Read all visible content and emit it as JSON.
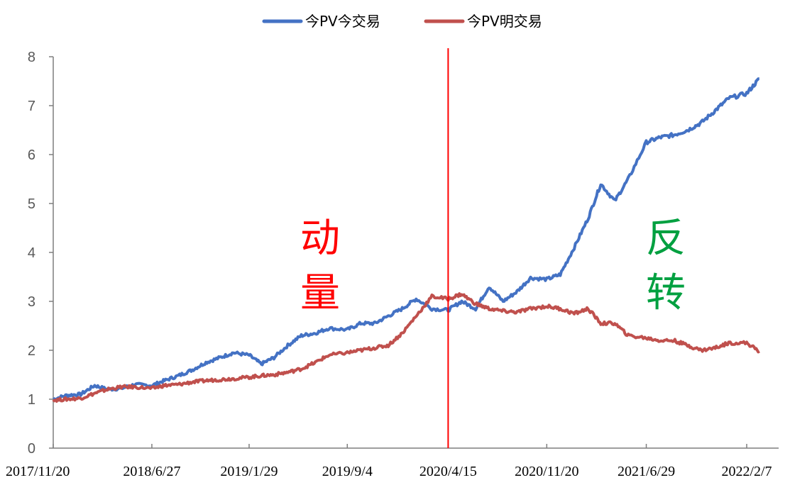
{
  "chart_data": {
    "type": "line",
    "legend_position": "top-center",
    "grid": false,
    "x_ticks": [
      "2017/11/20",
      "2018/6/27",
      "2019/1/29",
      "2019/9/4",
      "2020/4/15",
      "2020/11/20",
      "2021/6/29",
      "2022/2/7"
    ],
    "y_ticks": [
      "0",
      "1",
      "2",
      "3",
      "4",
      "5",
      "6",
      "7",
      "8"
    ],
    "ylim": [
      0,
      8
    ],
    "series": [
      {
        "name": "今PV今交易",
        "color": "#4472C4",
        "x": [
          "2017/11/20",
          "2017/12/20",
          "2018/1/20",
          "2018/2/20",
          "2018/3/20",
          "2018/4/20",
          "2018/5/20",
          "2018/6/27",
          "2018/7/25",
          "2018/8/25",
          "2018/9/25",
          "2018/10/25",
          "2018/11/25",
          "2018/12/25",
          "2019/1/29",
          "2019/2/25",
          "2019/3/25",
          "2019/4/25",
          "2019/5/25",
          "2019/6/25",
          "2019/7/25",
          "2019/9/4",
          "2019/10/4",
          "2019/11/4",
          "2019/12/4",
          "2020/1/4",
          "2020/2/4",
          "2020/3/10",
          "2020/4/15",
          "2020/5/15",
          "2020/6/15",
          "2020/7/15",
          "2020/8/15",
          "2020/9/15",
          "2020/10/15",
          "2020/11/20",
          "2020/12/20",
          "2021/1/20",
          "2021/2/20",
          "2021/3/20",
          "2021/4/20",
          "2021/5/20",
          "2021/6/29",
          "2021/7/29",
          "2021/8/29",
          "2021/9/29",
          "2021/10/29",
          "2021/11/29",
          "2021/12/29",
          "2022/2/7",
          "2022/3/7"
        ],
        "values": [
          1.0,
          1.08,
          1.1,
          1.28,
          1.2,
          1.22,
          1.3,
          1.28,
          1.38,
          1.48,
          1.6,
          1.75,
          1.85,
          1.95,
          1.9,
          1.72,
          1.85,
          2.1,
          2.3,
          2.35,
          2.45,
          2.42,
          2.55,
          2.55,
          2.7,
          2.85,
          3.05,
          2.85,
          2.82,
          3.0,
          2.85,
          3.3,
          3.0,
          3.2,
          3.48,
          3.45,
          3.55,
          4.1,
          4.7,
          5.4,
          5.05,
          5.5,
          6.25,
          6.35,
          6.4,
          6.5,
          6.65,
          6.9,
          7.15,
          7.25,
          7.55
        ]
      },
      {
        "name": "今PV明交易",
        "color": "#C0504D",
        "x": [
          "2017/11/20",
          "2017/12/20",
          "2018/1/20",
          "2018/2/20",
          "2018/3/20",
          "2018/4/20",
          "2018/5/20",
          "2018/6/27",
          "2018/7/25",
          "2018/8/25",
          "2018/9/25",
          "2018/10/25",
          "2018/11/25",
          "2018/12/25",
          "2019/1/29",
          "2019/2/25",
          "2019/3/25",
          "2019/4/25",
          "2019/5/25",
          "2019/6/25",
          "2019/7/25",
          "2019/9/4",
          "2019/10/4",
          "2019/11/4",
          "2019/12/4",
          "2020/1/4",
          "2020/2/4",
          "2020/3/10",
          "2020/4/15",
          "2020/5/15",
          "2020/6/15",
          "2020/7/15",
          "2020/8/15",
          "2020/9/15",
          "2020/10/15",
          "2020/11/20",
          "2020/12/20",
          "2021/1/20",
          "2021/2/20",
          "2021/3/20",
          "2021/4/20",
          "2021/5/20",
          "2021/6/29",
          "2021/7/29",
          "2021/8/29",
          "2021/9/29",
          "2021/10/29",
          "2021/11/29",
          "2021/12/29",
          "2022/2/7",
          "2022/3/7"
        ],
        "values": [
          0.98,
          1.0,
          1.02,
          1.12,
          1.2,
          1.25,
          1.25,
          1.22,
          1.28,
          1.3,
          1.35,
          1.38,
          1.4,
          1.42,
          1.45,
          1.48,
          1.5,
          1.55,
          1.62,
          1.75,
          1.9,
          1.95,
          2.0,
          2.05,
          2.1,
          2.35,
          2.7,
          3.1,
          3.05,
          3.15,
          2.95,
          2.85,
          2.8,
          2.78,
          2.85,
          2.9,
          2.85,
          2.75,
          2.85,
          2.55,
          2.55,
          2.3,
          2.25,
          2.2,
          2.2,
          2.1,
          2.0,
          2.05,
          2.15,
          2.15,
          1.98
        ]
      }
    ],
    "divider_date": "2020/4/15",
    "annotations": [
      {
        "text": "动",
        "color": "#FF0000"
      },
      {
        "text": "量",
        "color": "#FF0000"
      },
      {
        "text": "反",
        "color": "#00A040"
      },
      {
        "text": "转",
        "color": "#00A040"
      }
    ]
  }
}
